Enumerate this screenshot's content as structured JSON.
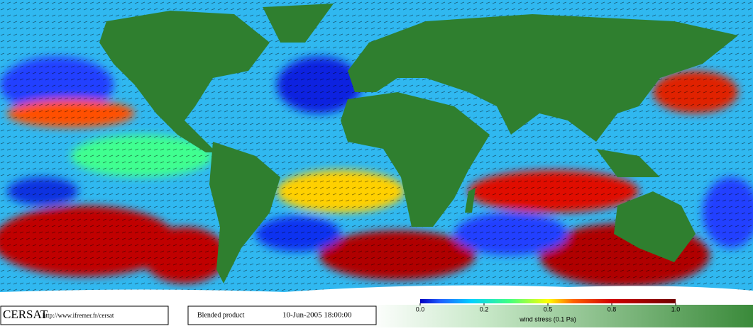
{
  "footer": {
    "logo": "CERSAT",
    "url": "http://www.ifremer.fr/cersat",
    "product": "Blended product",
    "date": "10-Jun-2005 18:00:00"
  },
  "colorbar": {
    "ticks": [
      {
        "value": 0,
        "label": "0.0"
      },
      0.2,
      0.5,
      0.8,
      {
        "value": 1,
        "label": "1.0"
      }
    ],
    "label": "wind stress (0.1 Pa)"
  }
}
